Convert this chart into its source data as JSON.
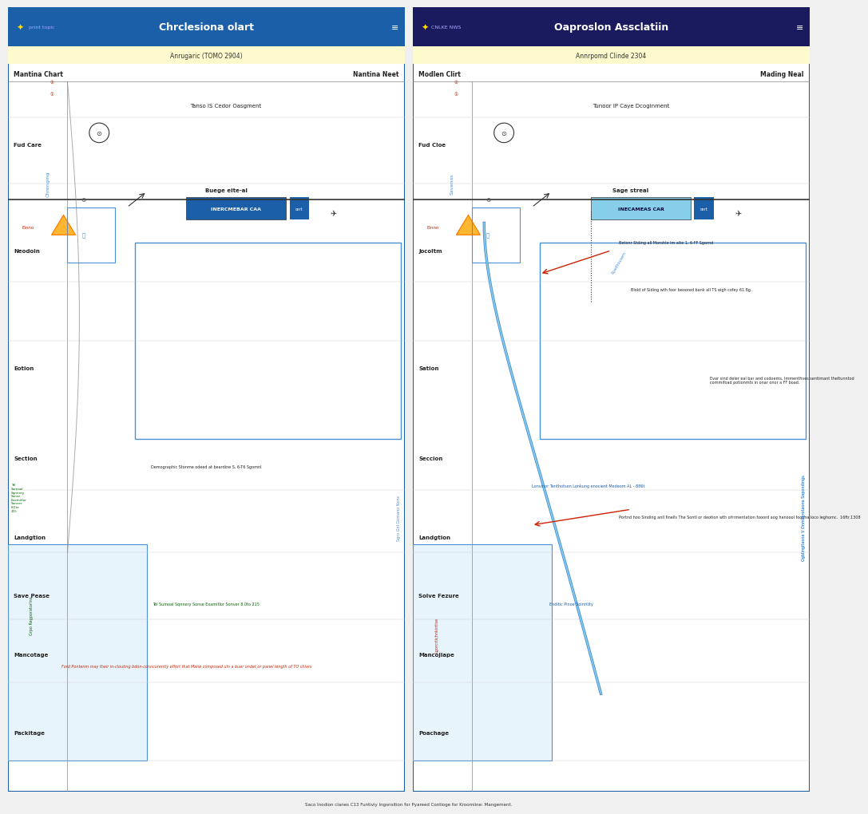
{
  "left_panel": {
    "header_bg": "#1a5fa8",
    "header_text": "Chrclesiona olart",
    "header_text_color": "#ffffff",
    "subtitle_bg": "#fffacd",
    "subtitle_text": "Anrugaric (TOMO 2904)",
    "subtitle_text_color": "#333333",
    "nav_left_text": "print topic",
    "nav_left_color": "#ffffff",
    "left_label": "Mantina Chart",
    "right_label": "Nantina Neet",
    "row_labels": [
      "Fud Care",
      "Neodoin",
      "Eotion",
      "Section",
      "Landgtion",
      "Save Pease",
      "Mancotage",
      "Packitage"
    ],
    "col_label": "Chrenging",
    "inner_text": "Tanso IS Cedor Oasgment",
    "box_text": "INERCMEBAR CAA",
    "box_bg": "#1a5fa8",
    "box_text2": "Buege elte-al",
    "annotation_red": "Ford Pontenm may their in-clouting bdon-conncurently effort that Mane composed uln a buer ondet or panel length of TO chlars",
    "annotation_red2": "Demographic Stonme odeed at beardine S, 6-T6 Sgomnl",
    "annotation_blue_v": "Sgro Gol Gumano Nons",
    "annotation_green": "Tel Sumoal Sqnnery Sonse Examitlor Sonver 8.0to 215",
    "blue_curve_left": true,
    "blue_rect": true
  },
  "right_panel": {
    "header_bg": "#1a1a5f",
    "header_text": "Oaproslon Assclatiin",
    "header_text_color": "#ffffff",
    "subtitle_bg": "#fffacd",
    "subtitle_text": "Annrpomd Clinde 2304",
    "subtitle_text_color": "#333333",
    "nav_left_text": "CNLKE NWS",
    "nav_left_color": "#ffffff",
    "left_label": "Modlen Clirt",
    "right_label": "Mading Neal",
    "row_labels": [
      "Fud Cloe",
      "Jocoltm",
      "Sation",
      "Seccion",
      "Landgtion",
      "Solve Fezure",
      "Mancojlape",
      "Poachage"
    ],
    "col_label": "Savenas",
    "inner_text": "Tunoor IP Caye Dcoginment",
    "box_text": "INECAMEAS CAR",
    "box_bg": "#87ceeb",
    "box_text2": "Sage streal",
    "annotation_red1": "Betonr Stding all Morohle Im alte 1, 6-FF Sgornd",
    "annotation_red2": "Blold of Siding wth foor beoored bank all TS eigh cofey 61.8g.",
    "annotation_red3": "Portnd hoo Sinding anll finells The Sontl or deotion wth ofrrmentation fooord aog hanoool fooona loco leghomc.  16ftr.1308",
    "annotation_blue": "Lonvinor Tenthotsen Lonkung enocient Medeom AL - 886t",
    "annotation_right1": "Evar sind deler eal bar and codoems, Immenthves sentimant theltunntod commifoad potionmts in onar onor a FF boad.",
    "annotation_blue_v": "Ogblingitaona V Onmligrotaona Sapondings",
    "annotation_green": "Enditic Plnoe Soinrility",
    "blue_curve": true,
    "blue_thick_curve": true,
    "dotted_line": true
  },
  "bottom_text": "Saco Inodion clanes C13 Funtiviy Ingsnsition for Pyareed Contioge for Kroomiine: Mangement.",
  "panel_bg": "#ffffff",
  "outer_bg": "#f0f0f0",
  "border_color": "#1a5fa8",
  "line_color_blue": "#4a90d9",
  "line_color_gray": "#888888",
  "text_color_red": "#cc2200",
  "text_color_blue": "#1a5fa8",
  "text_color_green": "#006600",
  "text_color_black": "#222222",
  "row_label_color": "#222222"
}
